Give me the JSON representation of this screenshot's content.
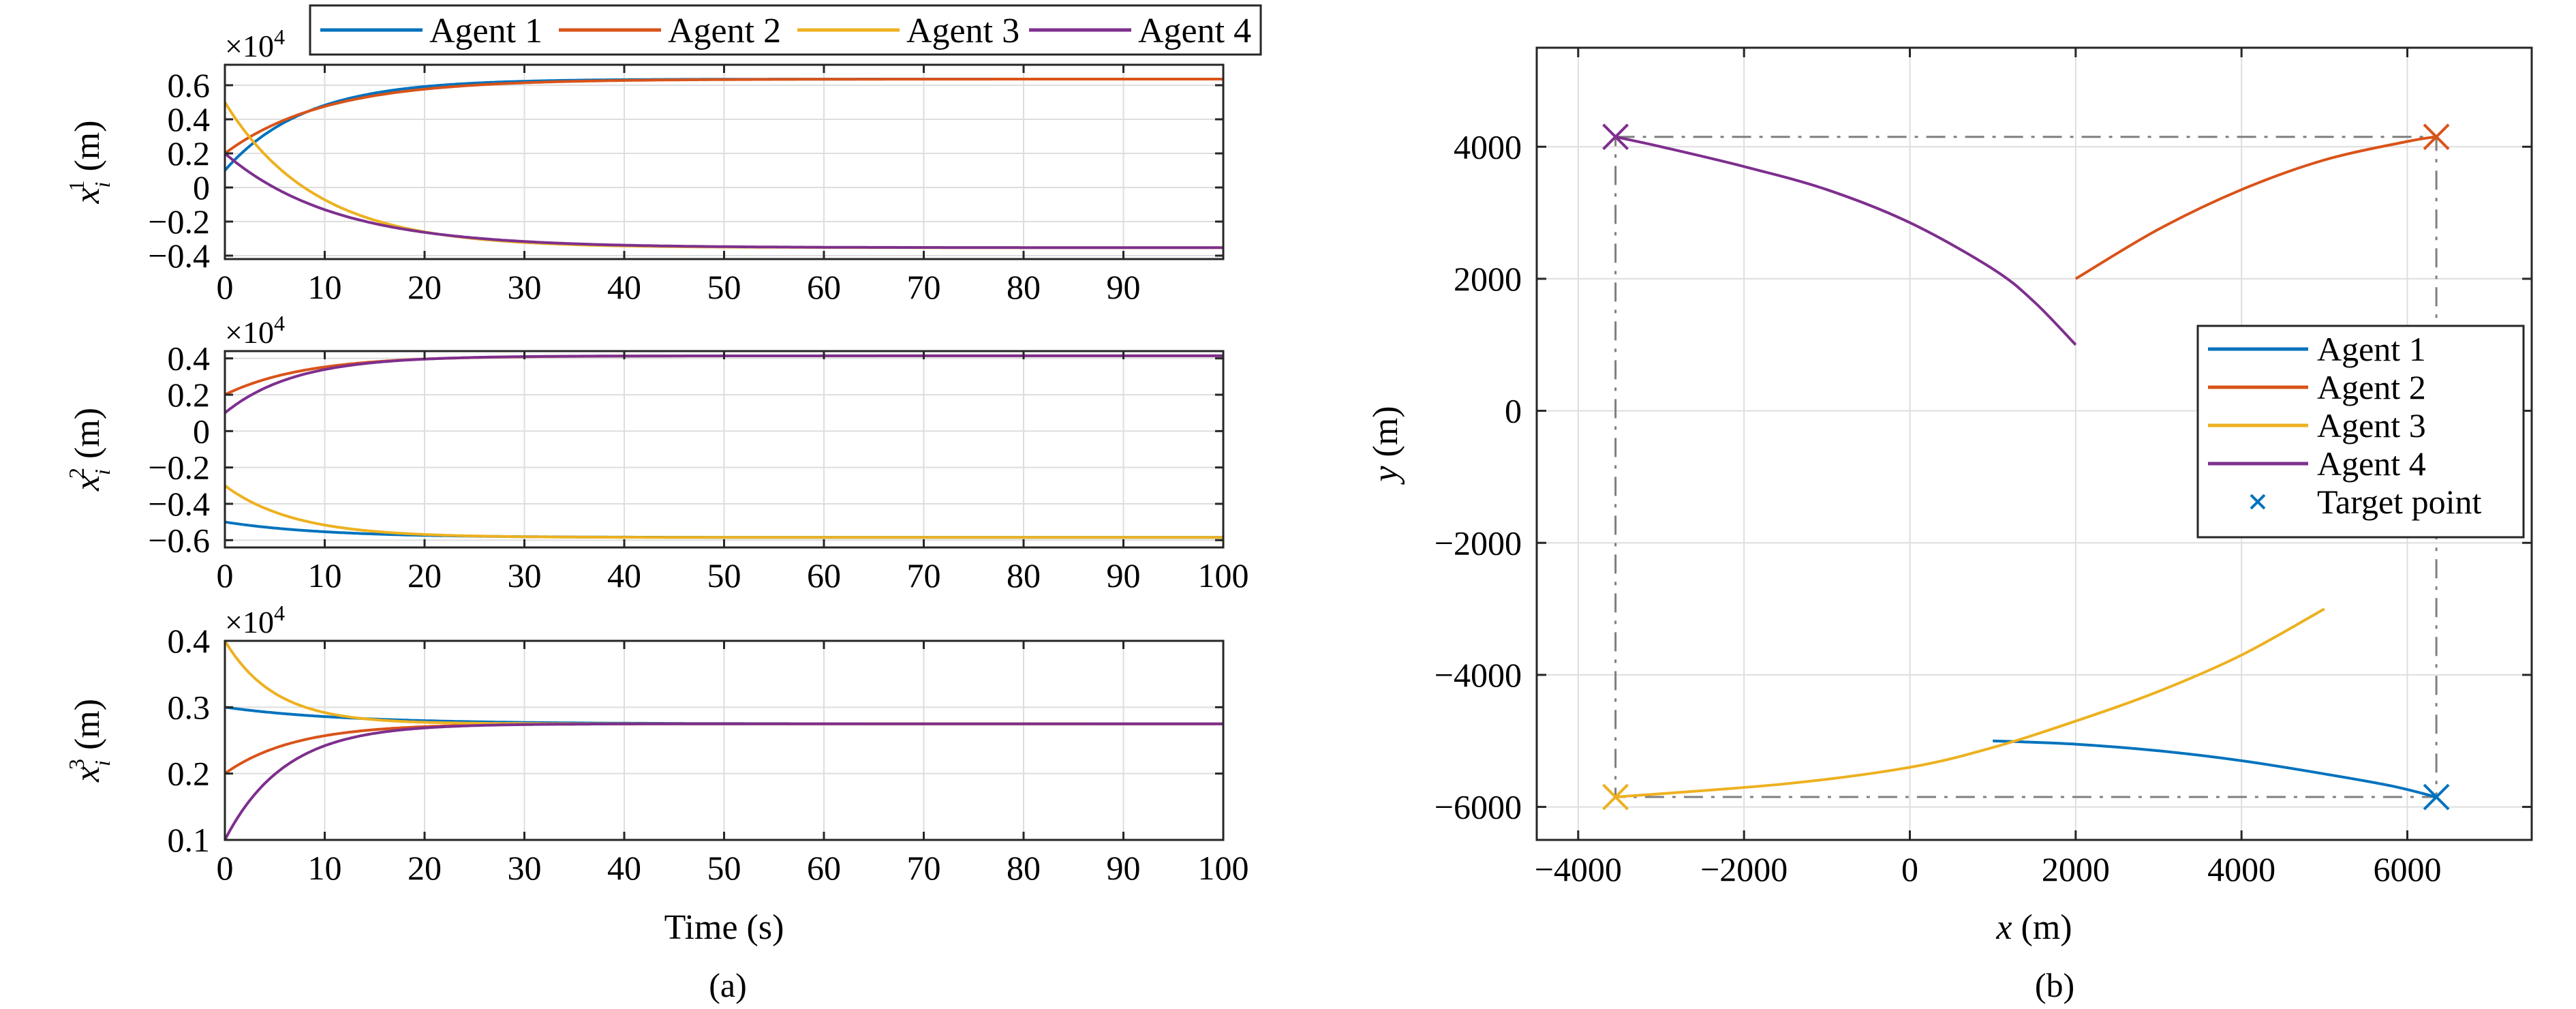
{
  "colors": {
    "agent1": "#0072BD",
    "agent2": "#D95319",
    "agent3": "#EDB120",
    "agent4": "#7E2F8E",
    "grid": "#dedede",
    "target_box": "#7f7f7f"
  },
  "legend_top": [
    "Agent 1",
    "Agent 2",
    "Agent 3",
    "Agent 4"
  ],
  "captions": {
    "a": "(a)",
    "b": "(b)"
  },
  "chart_data": [
    {
      "type": "line",
      "panel": "a1",
      "ylabel": "x_i^1 (m)",
      "ylabel_base": "x",
      "ylabel_sub": "i",
      "ylabel_sup": "1",
      "ylabel_unit": " (m)",
      "exponent_label": "×10",
      "exponent_power": "4",
      "xlim": [
        0,
        100
      ],
      "ylim": [
        -0.42,
        0.72
      ],
      "xticks": [
        0,
        10,
        20,
        30,
        40,
        50,
        60,
        70,
        80,
        90
      ],
      "yticks": [
        -0.4,
        -0.2,
        0,
        0.2,
        0.4,
        0.6
      ],
      "ytick_labels": [
        "−0.4",
        "−0.2",
        "0",
        "0.2",
        "0.4",
        "0.6"
      ],
      "grid": true,
      "series": [
        {
          "name": "Agent 1",
          "color": "agent1",
          "start": 0.1,
          "end": 0.636,
          "tau": 8
        },
        {
          "name": "Agent 2",
          "color": "agent2",
          "start": 0.2,
          "end": 0.636,
          "tau": 10
        },
        {
          "name": "Agent 3",
          "color": "agent3",
          "start": 0.5,
          "end": -0.353,
          "tau": 9
        },
        {
          "name": "Agent 4",
          "color": "agent4",
          "start": 0.2,
          "end": -0.353,
          "tau": 11
        }
      ]
    },
    {
      "type": "line",
      "panel": "a2",
      "ylabel": "x_i^2 (m)",
      "ylabel_base": "x",
      "ylabel_sub": "i",
      "ylabel_sup": "2",
      "ylabel_unit": " (m)",
      "exponent_label": "×10",
      "exponent_power": "4",
      "xlim": [
        0,
        100
      ],
      "ylim": [
        -0.64,
        0.44
      ],
      "xticks": [
        0,
        10,
        20,
        30,
        40,
        50,
        60,
        70,
        80,
        90,
        100
      ],
      "yticks": [
        -0.6,
        -0.4,
        -0.2,
        0,
        0.2,
        0.4
      ],
      "ytick_labels": [
        "−0.6",
        "−0.4",
        "−0.2",
        "0",
        "0.2",
        "0.4"
      ],
      "grid": true,
      "series": [
        {
          "name": "Agent 1",
          "color": "agent1",
          "start": -0.5,
          "end": -0.585,
          "tau": 10
        },
        {
          "name": "Agent 2",
          "color": "agent2",
          "start": 0.2,
          "end": 0.414,
          "tau": 8
        },
        {
          "name": "Agent 3",
          "color": "agent3",
          "start": -0.3,
          "end": -0.585,
          "tau": 7
        },
        {
          "name": "Agent 4",
          "color": "agent4",
          "start": 0.1,
          "end": 0.414,
          "tau": 7
        }
      ]
    },
    {
      "type": "line",
      "panel": "a3",
      "ylabel": "x_i^3 (m)",
      "ylabel_base": "x",
      "ylabel_sub": "i",
      "ylabel_sup": "3",
      "ylabel_unit": " (m)",
      "exponent_label": "×10",
      "exponent_power": "4",
      "xlim": [
        0,
        100
      ],
      "ylim": [
        0.1,
        0.4
      ],
      "xlabel": "Time (s)",
      "xticks": [
        0,
        10,
        20,
        30,
        40,
        50,
        60,
        70,
        80,
        90,
        100
      ],
      "yticks": [
        0.1,
        0.2,
        0.3,
        0.4
      ],
      "ytick_labels": [
        "0.1",
        "0.2",
        "0.3",
        "0.4"
      ],
      "grid": true,
      "series": [
        {
          "name": "Agent 1",
          "color": "agent1",
          "start": 0.3,
          "end": 0.275,
          "tau": 12
        },
        {
          "name": "Agent 2",
          "color": "agent2",
          "start": 0.2,
          "end": 0.275,
          "tau": 7
        },
        {
          "name": "Agent 3",
          "color": "agent3",
          "start": 0.4,
          "end": 0.275,
          "tau": 5
        },
        {
          "name": "Agent 4",
          "color": "agent4",
          "start": 0.1,
          "end": 0.275,
          "tau": 6
        }
      ]
    },
    {
      "type": "line",
      "panel": "b",
      "xlabel": "x (m)",
      "ylabel": "y (m)",
      "xlim": [
        -4500,
        7500
      ],
      "ylim": [
        -6500,
        5500
      ],
      "xticks": [
        -4000,
        -2000,
        0,
        2000,
        4000,
        6000
      ],
      "xtick_labels": [
        "−4000",
        "−2000",
        "0",
        "2000",
        "4000",
        "6000"
      ],
      "yticks": [
        -6000,
        -4000,
        -2000,
        0,
        2000,
        4000
      ],
      "ytick_labels": [
        "−6000",
        "−4000",
        "−2000",
        "0",
        "2000",
        "4000"
      ],
      "grid": true,
      "legend": [
        "Agent 1",
        "Agent 2",
        "Agent 3",
        "Agent 4",
        "Target point"
      ],
      "legend_position": "right",
      "series": [
        {
          "name": "Agent 1",
          "color": "agent1",
          "points": [
            [
              1000,
              -5000
            ],
            [
              2000,
              -5050
            ],
            [
              3000,
              -5150
            ],
            [
              4000,
              -5300
            ],
            [
              5000,
              -5500
            ],
            [
              5800,
              -5680
            ],
            [
              6350,
              -5850
            ]
          ]
        },
        {
          "name": "Agent 2",
          "color": "agent2",
          "points": [
            [
              2000,
              2000
            ],
            [
              3000,
              2750
            ],
            [
              4000,
              3350
            ],
            [
              5000,
              3800
            ],
            [
              6000,
              4080
            ],
            [
              6350,
              4150
            ]
          ]
        },
        {
          "name": "Agent 3",
          "color": "agent3",
          "points": [
            [
              5000,
              -3000
            ],
            [
              4000,
              -3700
            ],
            [
              3000,
              -4250
            ],
            [
              2000,
              -4700
            ],
            [
              1000,
              -5100
            ],
            [
              0,
              -5400
            ],
            [
              -1500,
              -5650
            ],
            [
              -3550,
              -5850
            ]
          ]
        },
        {
          "name": "Agent 4",
          "color": "agent4",
          "points": [
            [
              2000,
              1000
            ],
            [
              1500,
              1650
            ],
            [
              1000,
              2150
            ],
            [
              0,
              2850
            ],
            [
              -1000,
              3350
            ],
            [
              -2000,
              3700
            ],
            [
              -3000,
              4000
            ],
            [
              -3550,
              4150
            ]
          ]
        }
      ],
      "target_points": [
        {
          "name": "Agent 1",
          "color": "agent1",
          "x": 6350,
          "y": -5850
        },
        {
          "name": "Agent 2",
          "color": "agent2",
          "x": 6350,
          "y": 4150
        },
        {
          "name": "Agent 3",
          "color": "agent3",
          "x": -3550,
          "y": -5850
        },
        {
          "name": "Agent 4",
          "color": "agent4",
          "x": -3550,
          "y": 4150
        }
      ]
    }
  ]
}
